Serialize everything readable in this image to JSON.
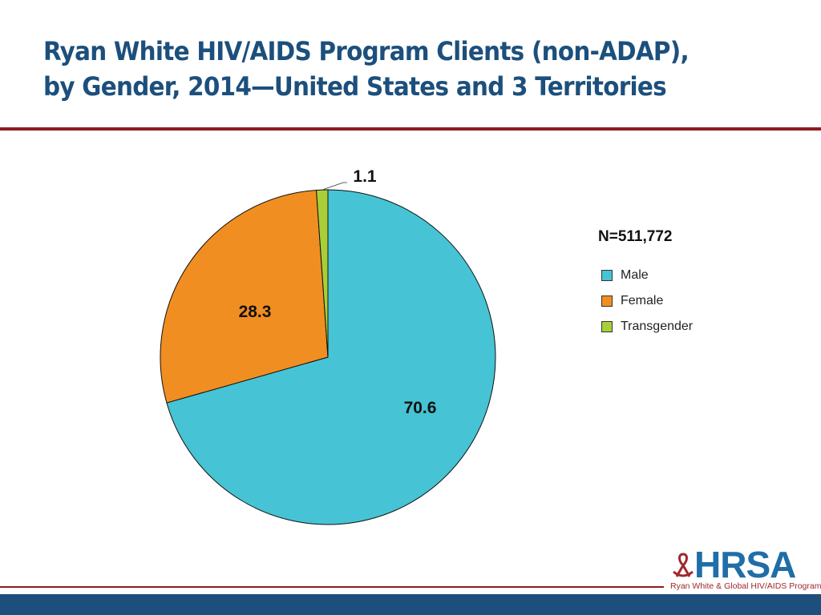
{
  "title_line1": "Ryan White HIV/AIDS Program Clients (non-ADAP),",
  "title_line2": "by Gender, 2014—United States and 3 Territories",
  "chart_data": {
    "type": "pie",
    "unit": "percent",
    "categories": [
      "Male",
      "Female",
      "Transgender"
    ],
    "values": [
      70.6,
      28.3,
      1.1
    ],
    "data_labels": [
      "70.6",
      "28.3",
      "1.1"
    ],
    "colors": [
      "#46c3d4",
      "#f18e22",
      "#a8cf38"
    ],
    "start": "top, clockwise",
    "annotation": "N=511,772",
    "legend": {
      "placement": "right",
      "entries": [
        "Male",
        "Female",
        "Transgender"
      ]
    }
  },
  "logo": {
    "word": "HRSA",
    "subtitle": "Ryan White & Global HIV/AIDS Programs"
  }
}
